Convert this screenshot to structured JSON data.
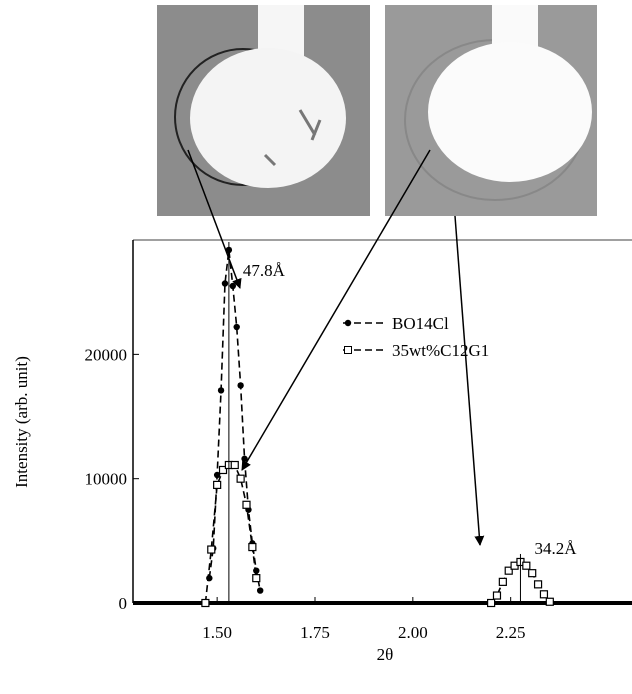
{
  "chart_data": {
    "type": "line",
    "x_label": "2θ",
    "y_label": "Intensity (arb. unit)",
    "xlim": [
      1.285,
      2.56
    ],
    "xticks": [
      {
        "value": 1.5,
        "label": "1.50"
      },
      1.75,
      {
        "value": 2.0,
        "label": "2.00"
      },
      2.25
    ],
    "ylim": [
      0,
      29200
    ],
    "yticks": [
      0,
      10000,
      20000
    ],
    "annotations": [
      "47.8Å",
      "34.2Å"
    ],
    "series": [
      {
        "name": "BO14Cl",
        "color": "#000000",
        "marker": "circle",
        "dashed": true,
        "x": [
          1.48,
          1.49,
          1.5,
          1.51,
          1.52,
          1.53,
          1.54,
          1.55,
          1.56,
          1.57,
          1.58,
          1.59,
          1.6,
          1.61
        ],
        "values": [
          2000,
          4400,
          10300,
          17100,
          25700,
          28400,
          25500,
          22200,
          17500,
          11600,
          7500,
          4800,
          2600,
          1000
        ]
      },
      {
        "name": "35wt%C12G1",
        "color": "#000000",
        "marker": "square",
        "dashed": true,
        "x": [
          1.47,
          1.485,
          1.5,
          1.515,
          1.53,
          1.545,
          1.56,
          1.575,
          1.59,
          1.6,
          2.2,
          2.215,
          2.23,
          2.245,
          2.26,
          2.275,
          2.29,
          2.305,
          2.32,
          2.335,
          2.35
        ],
        "values": [
          0,
          4300,
          9500,
          10700,
          11100,
          11100,
          10000,
          7900,
          4500,
          2000,
          0,
          600,
          1700,
          2600,
          3000,
          3300,
          3000,
          2400,
          1500,
          700,
          100
        ]
      }
    ]
  }
}
